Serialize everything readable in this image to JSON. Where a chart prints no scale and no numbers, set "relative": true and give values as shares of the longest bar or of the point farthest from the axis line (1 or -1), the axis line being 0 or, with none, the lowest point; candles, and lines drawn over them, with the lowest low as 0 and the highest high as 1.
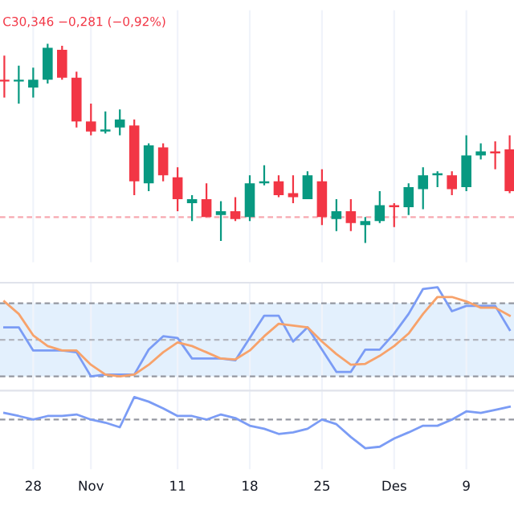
{
  "chart_data": [
    {
      "type": "candlestick",
      "relative": true,
      "tick_labels": false,
      "grid": true,
      "ohlc": [
        [
          0.82,
          0.94,
          0.73,
          0.81
        ],
        [
          0.81,
          0.89,
          0.7,
          0.82
        ],
        [
          0.78,
          0.88,
          0.73,
          0.82
        ],
        [
          0.82,
          1,
          0.8,
          0.98
        ],
        [
          0.97,
          0.99,
          0.82,
          0.83
        ],
        [
          0.83,
          0.86,
          0.58,
          0.61
        ],
        [
          0.61,
          0.7,
          0.54,
          0.56
        ],
        [
          0.56,
          0.66,
          0.55,
          0.57
        ],
        [
          0.58,
          0.67,
          0.54,
          0.62
        ],
        [
          0.59,
          0.62,
          0.24,
          0.31
        ],
        [
          0.3,
          0.5,
          0.26,
          0.49
        ],
        [
          0.48,
          0.5,
          0.31,
          0.34
        ],
        [
          0.33,
          0.38,
          0.16,
          0.22
        ],
        [
          0.2,
          0.24,
          0.11,
          0.22
        ],
        [
          0.22,
          0.3,
          0.13,
          0.13
        ],
        [
          0.14,
          0.21,
          0.01,
          0.16
        ],
        [
          0.16,
          0.23,
          0.11,
          0.12
        ],
        [
          0.13,
          0.34,
          0.11,
          0.3
        ],
        [
          0.3,
          0.39,
          0.29,
          0.31
        ],
        [
          0.31,
          0.34,
          0.23,
          0.24
        ],
        [
          0.25,
          0.34,
          0.2,
          0.23
        ],
        [
          0.22,
          0.36,
          0.22,
          0.34
        ],
        [
          0.31,
          0.37,
          0.09,
          0.13
        ],
        [
          0.12,
          0.22,
          0.06,
          0.16
        ],
        [
          0.16,
          0.22,
          0.06,
          0.1
        ],
        [
          0.09,
          0.13,
          0,
          0.11
        ],
        [
          0.11,
          0.26,
          0.1,
          0.19
        ],
        [
          0.19,
          0.2,
          0.08,
          0.18
        ],
        [
          0.18,
          0.3,
          0.14,
          0.28
        ],
        [
          0.27,
          0.38,
          0.17,
          0.34
        ],
        [
          0.34,
          0.36,
          0.28,
          0.35
        ],
        [
          0.34,
          0.36,
          0.24,
          0.27
        ],
        [
          0.28,
          0.54,
          0.26,
          0.44
        ],
        [
          0.44,
          0.5,
          0.42,
          0.46
        ],
        [
          0.46,
          0.51,
          0.37,
          0.45
        ],
        [
          0.47,
          0.54,
          0.25,
          0.26
        ]
      ],
      "ref_lines": [
        {
          "axis": "y",
          "value": 0.13,
          "color": "#f7a8b0",
          "line_style": "dashed"
        }
      ],
      "annotations": [
        "C30,346 −0,281 (−0,92%)"
      ]
    },
    {
      "type": "line",
      "relative": true,
      "tick_labels": false,
      "grid": true,
      "series": [
        {
          "color": "#7b9cf5",
          "values": [
            0.55,
            0.55,
            0.29,
            0.29,
            0.29,
            0.27,
            0,
            0.02,
            0.02,
            0.02,
            0.3,
            0.45,
            0.43,
            0.2,
            0.2,
            0.2,
            0.18,
            0.43,
            0.68,
            0.68,
            0.39,
            0.55,
            0.3,
            0.05,
            0.05,
            0.3,
            0.3,
            0.48,
            0.7,
            0.98,
            1,
            0.73,
            0.79,
            0.79,
            0.79,
            0.52
          ]
        },
        {
          "color": "#f7a26b",
          "values": [
            0.84,
            0.7,
            0.46,
            0.34,
            0.29,
            0.29,
            0.13,
            0.02,
            0,
            0.02,
            0.13,
            0.27,
            0.38,
            0.34,
            0.27,
            0.2,
            0.19,
            0.29,
            0.45,
            0.59,
            0.57,
            0.55,
            0.39,
            0.25,
            0.13,
            0.14,
            0.23,
            0.34,
            0.48,
            0.7,
            0.89,
            0.89,
            0.84,
            0.77,
            0.77,
            0.68
          ]
        }
      ],
      "bands": [
        {
          "axis": "y",
          "from": 0,
          "to": 0.82,
          "color": "#e3f0fd"
        }
      ],
      "ref_lines": [
        {
          "axis": "y",
          "value": 0.82,
          "color": "#9598a1",
          "line_style": "dashed"
        },
        {
          "axis": "y",
          "value": 0.41,
          "color": "#b2b5be",
          "line_style": "dashed"
        },
        {
          "axis": "y",
          "value": 0,
          "color": "#9598a1",
          "line_style": "dashed"
        }
      ]
    },
    {
      "type": "line",
      "relative": true,
      "tick_labels": "x",
      "grid": true,
      "categories": [
        null,
        null,
        "28",
        null,
        null,
        null,
        "Nov",
        null,
        null,
        null,
        null,
        null,
        "11",
        null,
        null,
        null,
        null,
        "18",
        null,
        null,
        null,
        null,
        "25",
        null,
        null,
        null,
        null,
        "Des",
        null,
        null,
        null,
        null,
        "9",
        null,
        null,
        null
      ],
      "series": [
        {
          "color": "#7b9cf5",
          "values": [
            0.69,
            0.63,
            0.56,
            0.63,
            0.63,
            0.66,
            0.56,
            0.5,
            0.41,
            1,
            0.91,
            0.78,
            0.63,
            0.63,
            0.56,
            0.66,
            0.59,
            0.44,
            0.38,
            0.28,
            0.31,
            0.38,
            0.56,
            0.47,
            0.22,
            0,
            0.03,
            0.19,
            0.31,
            0.44,
            0.44,
            0.56,
            0.72,
            0.69,
            0.75,
            0.81
          ]
        }
      ],
      "ref_lines": [
        {
          "axis": "y",
          "value": 0.56,
          "color": "#9598a1",
          "line_style": "dashed"
        }
      ]
    }
  ]
}
